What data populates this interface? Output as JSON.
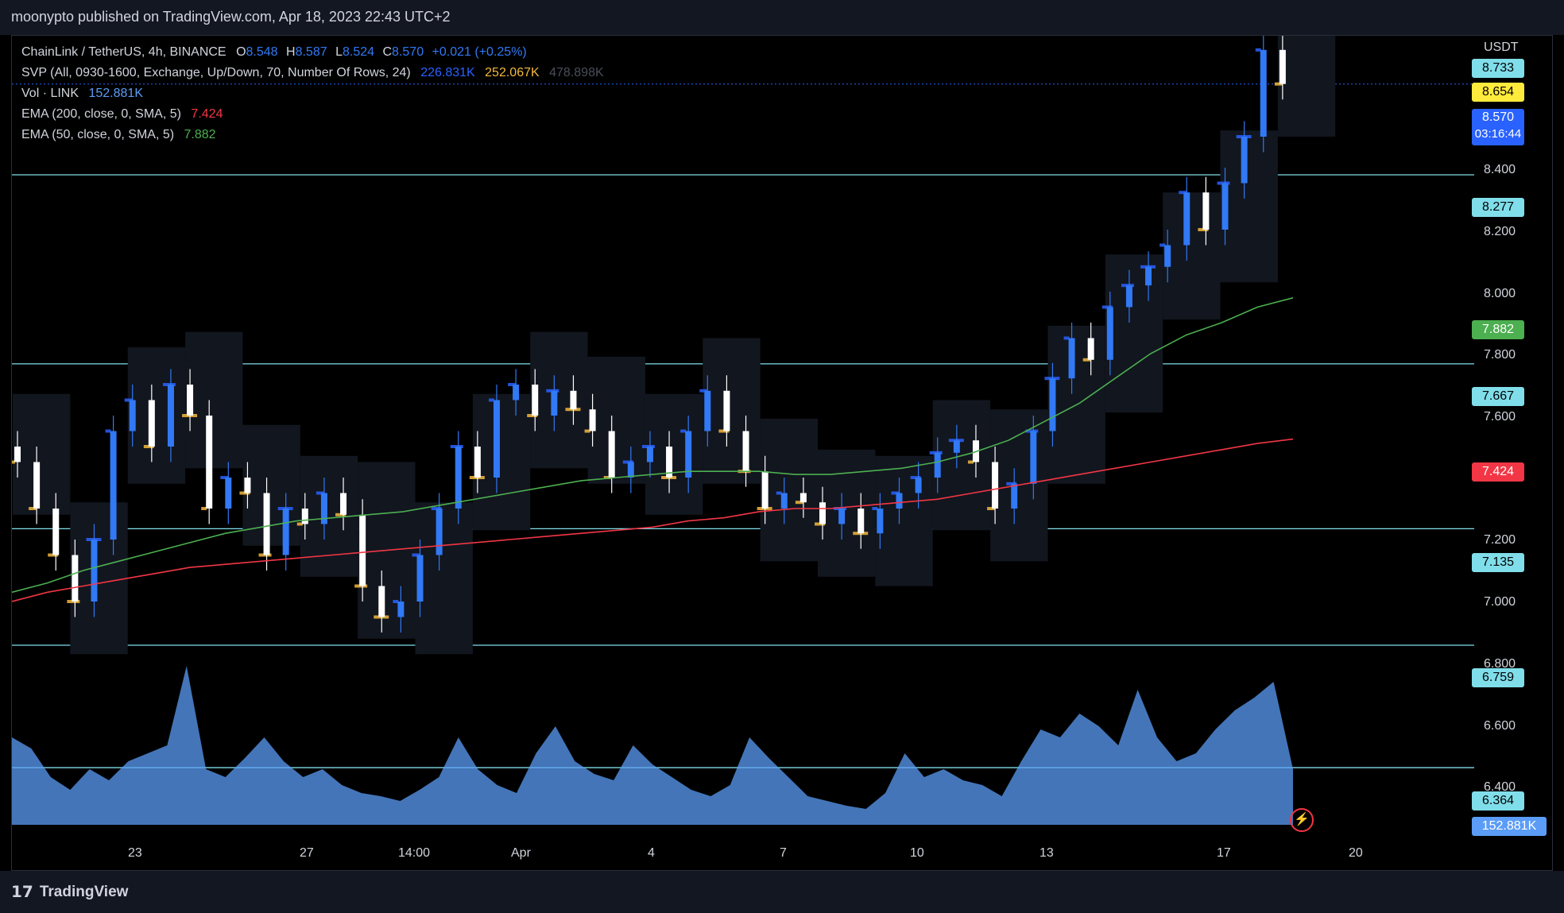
{
  "header": {
    "published": "moonypto published on TradingView.com, Apr 18, 2023 22:43 UTC+2"
  },
  "legend": {
    "symbol": "ChainLink / TetherUS, 4h, BINANCE",
    "o_label": "O",
    "o": "8.548",
    "h_label": "H",
    "h": "8.587",
    "l_label": "L",
    "l": "8.524",
    "c_label": "C",
    "c": "8.570",
    "change": "+0.021 (+0.25%)",
    "svp_label": "SVP (All, 0930-1600, Exchange, Up/Down, 70, Number Of Rows, 24)",
    "svp_v1": "226.831K",
    "svp_v2": "252.067K",
    "svp_v3": "478.898K",
    "vol_label": "Vol · LINK",
    "vol_value": "152.881K",
    "ema200_label": "EMA (200, close, 0, SMA, 5)",
    "ema200_value": "7.424",
    "ema50_label": "EMA (50, close, 0, SMA, 5)",
    "ema50_value": "7.882"
  },
  "axis": {
    "currency": "USDT",
    "y_ticks": [
      "8.400",
      "8.200",
      "8.000",
      "7.800",
      "7.600",
      "7.200",
      "7.000",
      "6.800",
      "6.600",
      "6.400"
    ],
    "x_ticks": [
      "23",
      "27",
      "14:00",
      "Apr",
      "4",
      "7",
      "10",
      "13",
      "17",
      "20"
    ]
  },
  "price_tags": {
    "h1": "8.733",
    "yellow": "8.654",
    "current": "8.570",
    "countdown": "03:16:44",
    "h2": "8.277",
    "ema50": "7.882",
    "h3": "7.667",
    "ema200": "7.424",
    "h4": "7.135",
    "h5": "6.759",
    "h6": "6.364",
    "volume": "152.881K"
  },
  "colors": {
    "up": "#3179f5",
    "down": "#ffffff",
    "ema50": "#4caf50",
    "ema200": "#f23645",
    "hline": "#80deea",
    "volume": "#5b9cf6",
    "svp_up": "#2962ff",
    "svp_down": "#f5b93c"
  },
  "chart_data": {
    "type": "candlestick",
    "title": "ChainLink / TetherUS, 4h, BINANCE",
    "ylabel": "USDT",
    "ylim": [
      6.3,
      8.8
    ],
    "x_ticks": [
      "23",
      "27",
      "14:00",
      "Apr",
      "4",
      "7",
      "10",
      "13",
      "17",
      "20"
    ],
    "horizontal_levels": [
      8.733,
      8.277,
      7.667,
      7.135,
      6.759,
      6.364
    ],
    "last": {
      "open": 8.548,
      "high": 8.587,
      "low": 8.524,
      "close": 8.57
    },
    "ema200_last": 7.424,
    "ema50_last": 7.882,
    "volume_last": "152.881K",
    "close_path": [
      7.35,
      7.2,
      7.05,
      6.9,
      7.1,
      7.45,
      7.55,
      7.4,
      7.6,
      7.5,
      7.2,
      7.3,
      7.25,
      7.05,
      7.2,
      7.15,
      7.25,
      7.18,
      6.95,
      6.85,
      6.9,
      7.05,
      7.2,
      7.4,
      7.3,
      7.55,
      7.6,
      7.5,
      7.58,
      7.52,
      7.45,
      7.3,
      7.35,
      7.4,
      7.3,
      7.45,
      7.58,
      7.45,
      7.32,
      7.2,
      7.25,
      7.22,
      7.15,
      7.2,
      7.12,
      7.2,
      7.25,
      7.3,
      7.38,
      7.42,
      7.35,
      7.2,
      7.28,
      7.45,
      7.62,
      7.75,
      7.68,
      7.85,
      7.92,
      7.98,
      8.05,
      8.22,
      8.1,
      8.25,
      8.4,
      8.68,
      8.57
    ],
    "ema50_path": [
      6.93,
      6.96,
      7.0,
      7.03,
      7.06,
      7.09,
      7.12,
      7.14,
      7.16,
      7.17,
      7.18,
      7.19,
      7.21,
      7.23,
      7.25,
      7.27,
      7.29,
      7.3,
      7.31,
      7.32,
      7.32,
      7.32,
      7.31,
      7.31,
      7.32,
      7.33,
      7.35,
      7.38,
      7.42,
      7.48,
      7.54,
      7.62,
      7.7,
      7.76,
      7.8,
      7.85,
      7.88
    ],
    "ema200_path": [
      6.9,
      6.93,
      6.95,
      6.97,
      6.99,
      7.01,
      7.02,
      7.03,
      7.04,
      7.05,
      7.06,
      7.07,
      7.08,
      7.09,
      7.1,
      7.11,
      7.12,
      7.13,
      7.14,
      7.16,
      7.17,
      7.19,
      7.2,
      7.2,
      7.21,
      7.22,
      7.23,
      7.25,
      7.27,
      7.29,
      7.31,
      7.33,
      7.35,
      7.37,
      7.39,
      7.41,
      7.424
    ],
    "volume_series": [
      0.55,
      0.48,
      0.3,
      0.22,
      0.35,
      0.28,
      0.4,
      0.45,
      0.5,
      1.0,
      0.35,
      0.3,
      0.42,
      0.55,
      0.4,
      0.3,
      0.35,
      0.25,
      0.2,
      0.18,
      0.15,
      0.22,
      0.3,
      0.55,
      0.35,
      0.25,
      0.2,
      0.45,
      0.62,
      0.4,
      0.32,
      0.28,
      0.5,
      0.38,
      0.3,
      0.22,
      0.18,
      0.25,
      0.55,
      0.42,
      0.3,
      0.18,
      0.15,
      0.12,
      0.1,
      0.2,
      0.45,
      0.3,
      0.35,
      0.28,
      0.25,
      0.18,
      0.4,
      0.6,
      0.55,
      0.7,
      0.62,
      0.5,
      0.85,
      0.55,
      0.4,
      0.45,
      0.6,
      0.72,
      0.8,
      0.9,
      0.35
    ]
  }
}
